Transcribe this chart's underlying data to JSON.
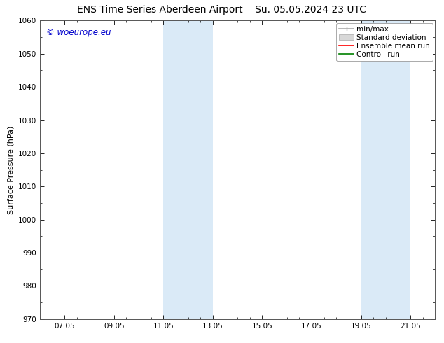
{
  "title": "ENS Time Series Aberdeen Airport",
  "title2": "Su. 05.05.2024 23 UTC",
  "ylabel": "Surface Pressure (hPa)",
  "ylim": [
    970,
    1060
  ],
  "yticks": [
    970,
    980,
    990,
    1000,
    1010,
    1020,
    1030,
    1040,
    1050,
    1060
  ],
  "xtick_labels": [
    "07.05",
    "09.05",
    "11.05",
    "13.05",
    "15.05",
    "17.05",
    "19.05",
    "21.05"
  ],
  "xtick_positions": [
    1.0,
    3.0,
    5.0,
    7.0,
    9.0,
    11.0,
    13.0,
    15.0
  ],
  "xlim": [
    0.0,
    16.0
  ],
  "shade_bands": [
    {
      "x_start": 5.0,
      "x_end": 7.0
    },
    {
      "x_start": 13.0,
      "x_end": 15.0
    }
  ],
  "shade_color": "#daeaf7",
  "background_color": "#ffffff",
  "watermark": "© woeurope.eu",
  "watermark_color": "#0000cc",
  "legend_items": [
    {
      "label": "min/max",
      "color": "#aaaaaa",
      "lw": 1.2,
      "ls": "-",
      "type": "line_bar"
    },
    {
      "label": "Standard deviation",
      "color": "#d8d8d8",
      "lw": 8,
      "ls": "-",
      "type": "patch"
    },
    {
      "label": "Ensemble mean run",
      "color": "#ff0000",
      "lw": 1.2,
      "ls": "-",
      "type": "line"
    },
    {
      "label": "Controll run",
      "color": "#008000",
      "lw": 1.2,
      "ls": "-",
      "type": "line"
    }
  ],
  "title_fontsize": 10,
  "axis_label_fontsize": 8,
  "tick_fontsize": 7.5,
  "legend_fontsize": 7.5
}
